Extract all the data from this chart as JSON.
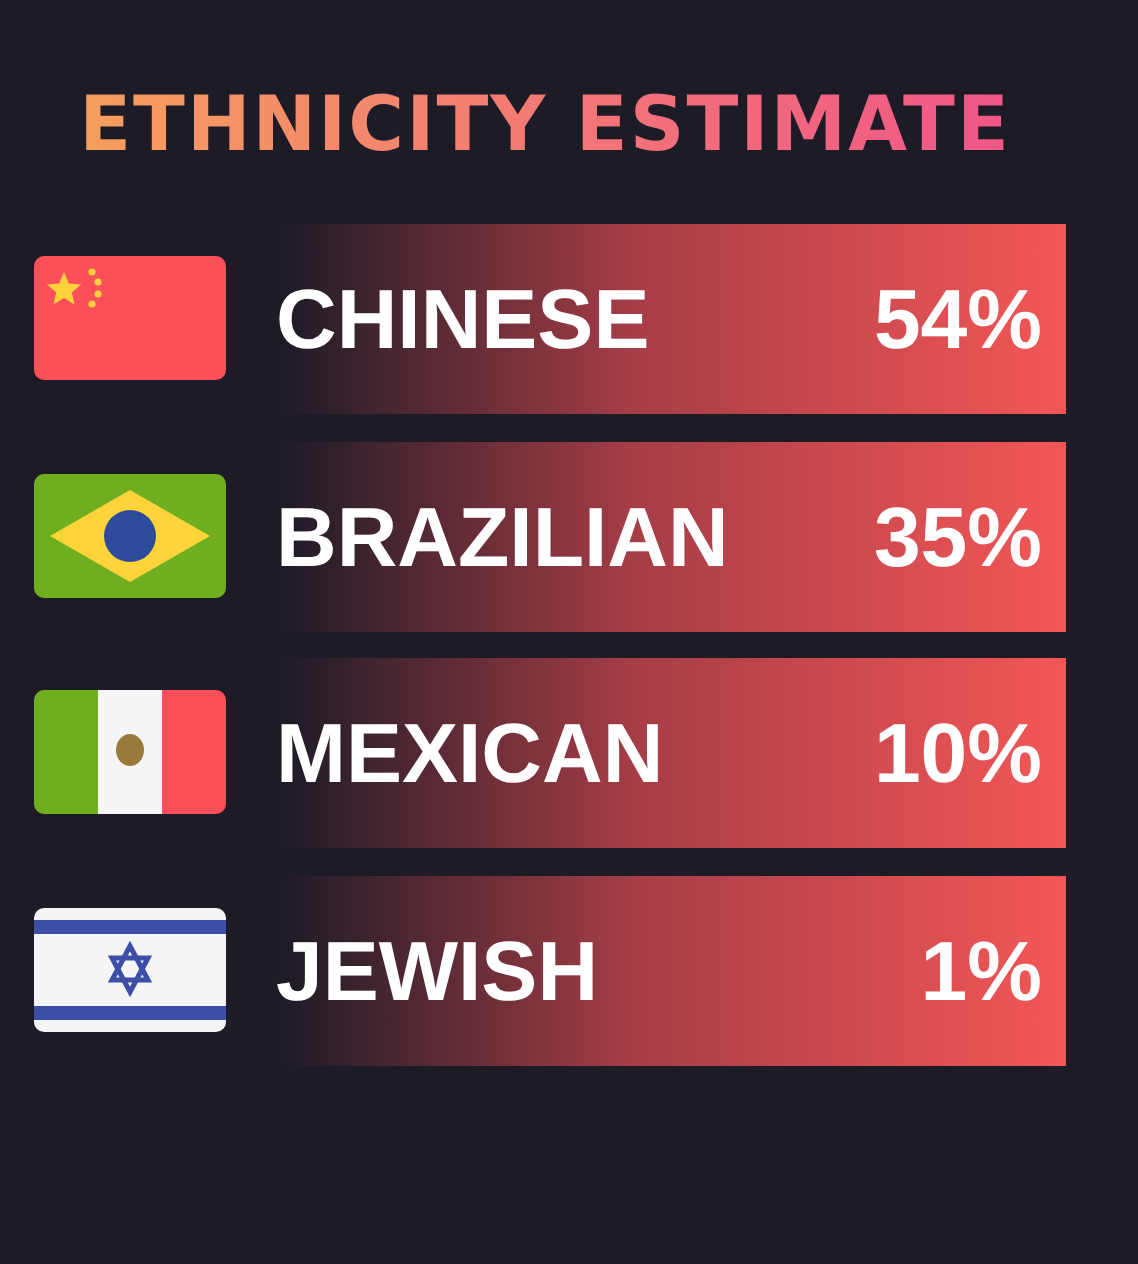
{
  "chart_data": {
    "type": "other",
    "title": "ETHNICITY ESTIMATE",
    "categories": [
      "CHINESE",
      "BRAZILIAN",
      "MEXICAN",
      "JEWISH"
    ],
    "values": [
      54,
      35,
      10,
      1
    ],
    "value_labels": [
      "54%",
      "35%",
      "10%",
      "1%"
    ]
  }
}
